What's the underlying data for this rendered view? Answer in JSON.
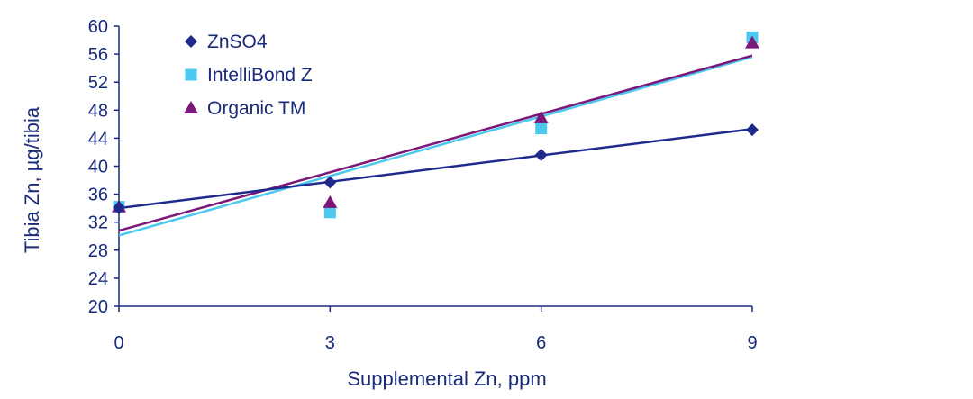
{
  "chart_data": {
    "type": "scatter",
    "title": "",
    "xlabel": "Supplemental Zn, ppm",
    "ylabel": "Tibia Zn, µg/tibia",
    "xlim": [
      0,
      9
    ],
    "ylim": [
      20,
      60
    ],
    "x_ticks": [
      0,
      3,
      6,
      9
    ],
    "y_ticks": [
      20,
      24,
      28,
      32,
      36,
      40,
      44,
      48,
      52,
      56,
      60
    ],
    "grid": false,
    "legend_position": "top-left",
    "series": [
      {
        "name": "ZnSO4",
        "marker": "diamond",
        "color": "#1f2a8c",
        "x": [
          0,
          3,
          6,
          9
        ],
        "y": [
          34.1,
          37.7,
          41.6,
          45.2
        ],
        "trendline": [
          [
            0,
            34.0
          ],
          [
            9,
            45.3
          ]
        ]
      },
      {
        "name": "IntelliBond Z",
        "marker": "square",
        "color": "#4dc8ee",
        "x": [
          0,
          3,
          6,
          9
        ],
        "y": [
          34.2,
          33.4,
          45.4,
          58.4
        ],
        "trendline": [
          [
            0,
            30.1
          ],
          [
            9,
            55.6
          ]
        ]
      },
      {
        "name": "Organic TM",
        "marker": "triangle",
        "color": "#7b1878",
        "x": [
          0,
          3,
          6,
          9
        ],
        "y": [
          34.2,
          34.8,
          46.9,
          57.6
        ],
        "trendline": [
          [
            0,
            30.8
          ],
          [
            9,
            55.8
          ]
        ]
      }
    ]
  }
}
